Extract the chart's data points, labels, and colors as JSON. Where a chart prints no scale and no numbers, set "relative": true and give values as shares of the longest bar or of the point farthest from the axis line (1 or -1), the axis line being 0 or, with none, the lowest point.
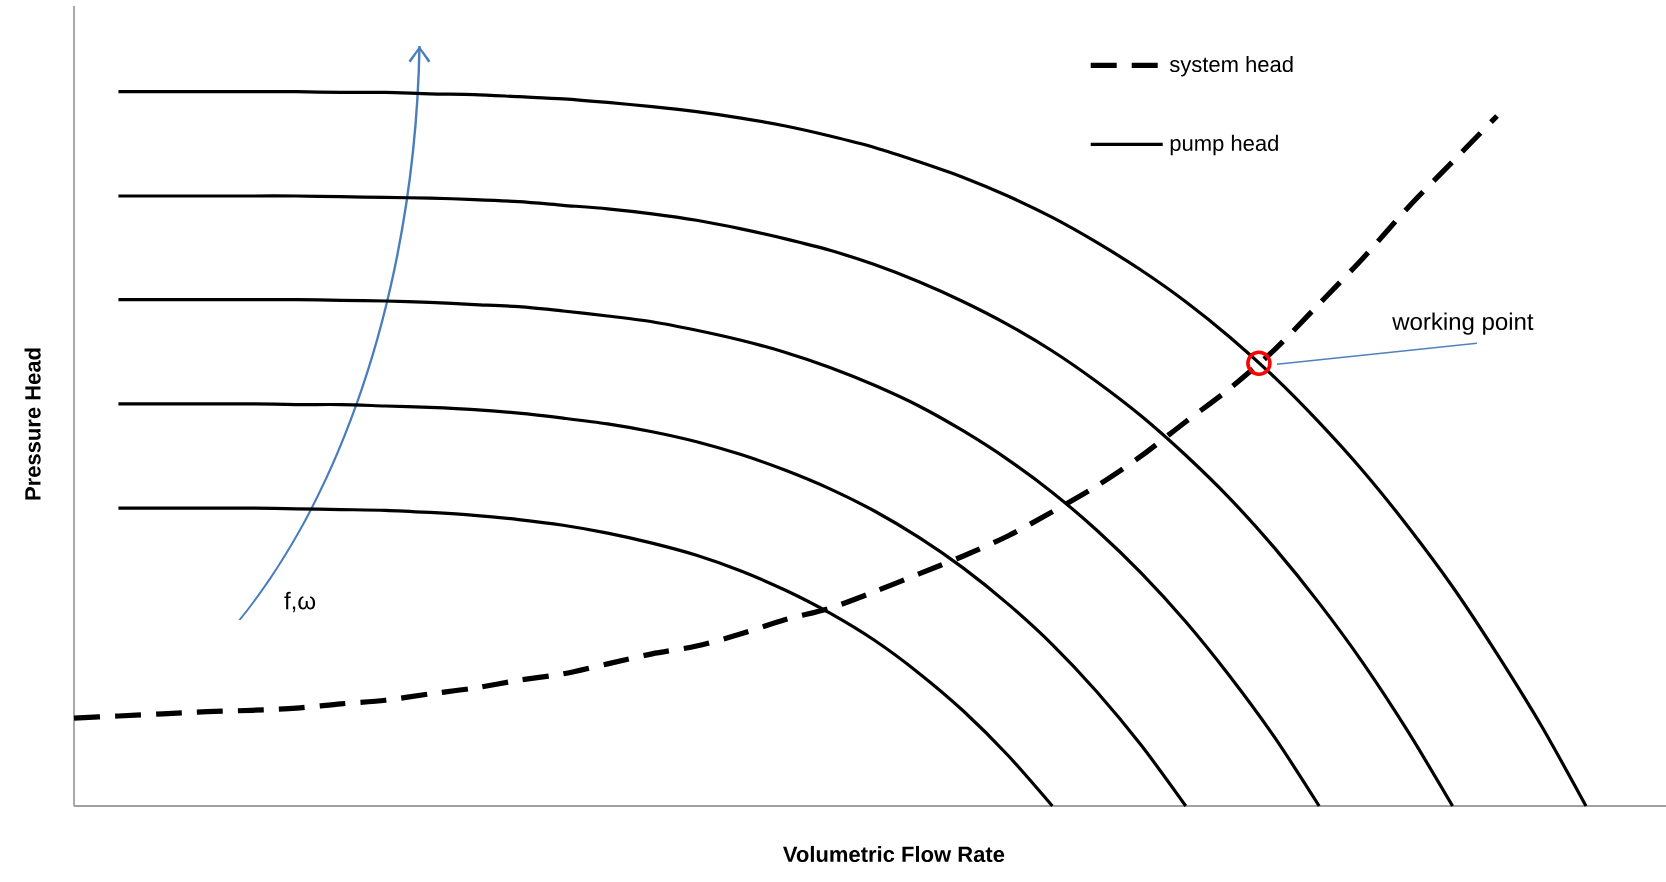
{
  "chart_data": {
    "type": "line",
    "relative": true,
    "xlabel": "Volumetric Flow Rate",
    "ylabel": "Pressure Head",
    "legend": "top right",
    "categories": [
      null,
      null,
      null,
      null,
      null,
      null,
      null,
      null,
      null,
      null,
      null,
      null,
      null,
      null,
      null,
      null,
      null,
      null,
      null,
      null,
      null,
      null,
      null,
      null,
      null,
      null,
      null,
      null,
      null,
      null,
      null,
      null,
      null,
      null,
      null,
      null
    ],
    "series": [
      {
        "name": "system head",
        "color": "#000000",
        "line_style": "dashed",
        "values": [
          0.123,
          0.126,
          0.129,
          0.132,
          0.134,
          0.137,
          0.143,
          0.148,
          0.157,
          0.165,
          0.176,
          0.185,
          0.199,
          0.213,
          0.224,
          0.241,
          0.261,
          0.277,
          0.3,
          0.325,
          0.35,
          0.378,
          0.412,
          0.448,
          0.49,
          0.538,
          0.585,
          0.639,
          0.703,
          0.768,
          0.838,
          0.902,
          0.966,
          null,
          null,
          null
        ]
      },
      {
        "name": "pump head",
        "color": "#000000",
        "line_style": "solid",
        "values": [
          null,
          1.0,
          1.0,
          1.0,
          1.0,
          1.0,
          0.999,
          0.999,
          0.997,
          0.996,
          0.993,
          0.99,
          0.985,
          0.979,
          0.972,
          0.963,
          0.952,
          0.938,
          0.922,
          0.902,
          0.88,
          0.854,
          0.824,
          0.789,
          0.75,
          0.706,
          0.656,
          0.6,
          0.537,
          0.468,
          0.391,
          0.307,
          0.213,
          0.112,
          0,
          null
        ]
      },
      {
        "color": "#000000",
        "line_style": "solid",
        "values": [
          null,
          0.854,
          0.854,
          0.854,
          0.854,
          0.854,
          0.853,
          0.852,
          0.851,
          0.849,
          0.846,
          0.841,
          0.836,
          0.829,
          0.82,
          0.808,
          0.794,
          0.778,
          0.758,
          0.734,
          0.706,
          0.674,
          0.637,
          0.594,
          0.546,
          0.491,
          0.43,
          0.361,
          0.284,
          0.199,
          0.104,
          0,
          null,
          null,
          null,
          null
        ]
      },
      {
        "color": "#000000",
        "line_style": "solid",
        "values": [
          null,
          0.709,
          0.709,
          0.709,
          0.709,
          0.709,
          0.708,
          0.707,
          0.705,
          0.702,
          0.699,
          0.693,
          0.686,
          0.678,
          0.666,
          0.652,
          0.635,
          0.614,
          0.589,
          0.56,
          0.525,
          0.485,
          0.439,
          0.386,
          0.326,
          0.258,
          0.181,
          0.096,
          0,
          null,
          null,
          null,
          null,
          null,
          null,
          null
        ]
      },
      {
        "color": "#000000",
        "line_style": "solid",
        "values": [
          null,
          0.563,
          0.563,
          0.563,
          0.563,
          0.562,
          0.562,
          0.56,
          0.558,
          0.555,
          0.55,
          0.543,
          0.535,
          0.524,
          0.51,
          0.492,
          0.47,
          0.444,
          0.413,
          0.376,
          0.333,
          0.283,
          0.226,
          0.16,
          0.085,
          0,
          null,
          null,
          null,
          null,
          null,
          null,
          null,
          null,
          null,
          null
        ]
      },
      {
        "color": "#000000",
        "line_style": "solid",
        "values": [
          null,
          0.417,
          0.417,
          0.417,
          0.417,
          0.416,
          0.415,
          0.414,
          0.411,
          0.407,
          0.401,
          0.393,
          0.382,
          0.368,
          0.351,
          0.329,
          0.302,
          0.27,
          0.232,
          0.186,
          0.133,
          0.071,
          0,
          null,
          null,
          null,
          null,
          null,
          null,
          null,
          null,
          null,
          null,
          null,
          null,
          null
        ]
      }
    ],
    "annotations": [
      "working point",
      "f,ω"
    ]
  }
}
